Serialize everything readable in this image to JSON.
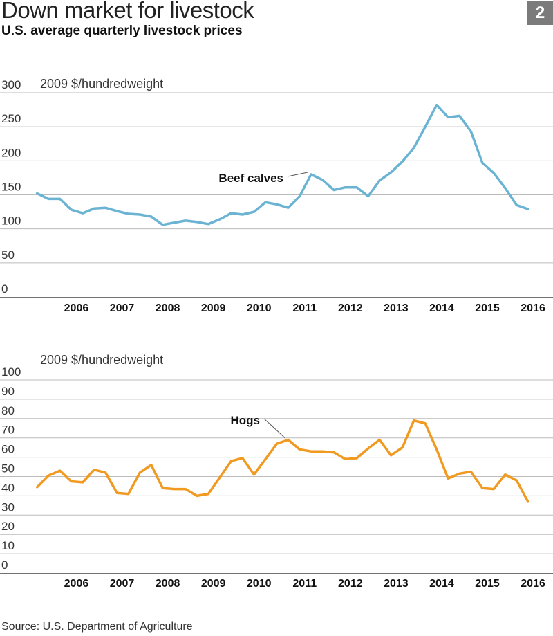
{
  "header": {
    "title": "Down market for livestock",
    "subtitle": "U.S. average quarterly livestock prices",
    "badge": "2"
  },
  "footer": {
    "source": "Source: U.S. Department of Agriculture"
  },
  "colors": {
    "beef": "#6bb3d3",
    "hogs": "#f19a22",
    "grid": "#bbbbbb",
    "axis": "#444444"
  },
  "chart_data": [
    {
      "type": "line",
      "title": "Beef calves",
      "ylabel": "2009 $/hundredweight",
      "ylim": [
        0,
        300
      ],
      "yticks": [
        0,
        50,
        100,
        150,
        200,
        250,
        300
      ],
      "x_labels": [
        "2006",
        "2007",
        "2008",
        "2009",
        "2010",
        "2011",
        "2012",
        "2013",
        "2014",
        "2015",
        "2016"
      ],
      "x_label_positions": [
        2006,
        2007,
        2008,
        2009,
        2010,
        2011,
        2012,
        2013,
        2014,
        2015,
        2016
      ],
      "xlim": [
        2005.6,
        2016.65
      ],
      "annotation": {
        "label": "Beef calves",
        "at_x": 2011.55
      },
      "series": [
        {
          "name": "Beef calves",
          "x": [
            2005.625,
            2005.875,
            2006.125,
            2006.375,
            2006.625,
            2006.875,
            2007.125,
            2007.375,
            2007.625,
            2007.875,
            2008.125,
            2008.375,
            2008.625,
            2008.875,
            2009.125,
            2009.375,
            2009.625,
            2009.875,
            2010.125,
            2010.375,
            2010.625,
            2010.875,
            2011.125,
            2011.375,
            2011.625,
            2011.875,
            2012.125,
            2012.375,
            2012.625,
            2012.875,
            2013.125,
            2013.375,
            2013.625,
            2013.875,
            2014.125,
            2014.375,
            2014.625,
            2014.875,
            2015.125,
            2015.375,
            2015.625,
            2015.875,
            2016.125,
            2016.375
          ],
          "values": [
            152,
            144,
            144,
            128,
            123,
            130,
            131,
            126,
            122,
            121,
            118,
            106,
            109,
            112,
            110,
            107,
            114,
            123,
            121,
            125,
            139,
            136,
            131,
            148,
            180,
            172,
            157,
            161,
            161,
            148,
            171,
            183,
            199,
            219,
            250,
            282,
            264,
            266,
            243,
            197,
            182,
            160,
            135,
            129
          ]
        }
      ]
    },
    {
      "type": "line",
      "title": "Hogs",
      "ylabel": "2009 $/hundredweight",
      "ylim": [
        0,
        100
      ],
      "yticks": [
        0,
        10,
        20,
        30,
        40,
        50,
        60,
        70,
        80,
        90,
        100
      ],
      "x_labels": [
        "2006",
        "2007",
        "2008",
        "2009",
        "2010",
        "2011",
        "2012",
        "2013",
        "2014",
        "2015",
        "2016"
      ],
      "x_label_positions": [
        2006,
        2007,
        2008,
        2009,
        2010,
        2011,
        2012,
        2013,
        2014,
        2015,
        2016
      ],
      "xlim": [
        2005.6,
        2016.65
      ],
      "annotation": {
        "label": "Hogs",
        "at_x": 2011.05
      },
      "series": [
        {
          "name": "Hogs",
          "x": [
            2005.625,
            2005.875,
            2006.125,
            2006.375,
            2006.625,
            2006.875,
            2007.125,
            2007.375,
            2007.625,
            2007.875,
            2008.125,
            2008.375,
            2008.625,
            2008.875,
            2009.125,
            2009.375,
            2009.625,
            2009.875,
            2010.125,
            2010.375,
            2010.625,
            2010.875,
            2011.125,
            2011.375,
            2011.625,
            2011.875,
            2012.125,
            2012.375,
            2012.625,
            2012.875,
            2013.125,
            2013.375,
            2013.625,
            2013.875,
            2014.125,
            2014.375,
            2014.625,
            2014.875,
            2015.125,
            2015.375,
            2015.625,
            2015.875,
            2016.125,
            2016.375
          ],
          "values": [
            44.5,
            50.5,
            53,
            47.5,
            47,
            53.5,
            52,
            41.5,
            41,
            52,
            56,
            44,
            43.5,
            43.5,
            40,
            41,
            49.5,
            58,
            59.5,
            51,
            59,
            67,
            69,
            64,
            63,
            63,
            62.5,
            59,
            59.5,
            64.5,
            69,
            61,
            65,
            79,
            77.5,
            64,
            49,
            51.5,
            52.5,
            44,
            43.5,
            51,
            48,
            37
          ]
        }
      ]
    }
  ]
}
